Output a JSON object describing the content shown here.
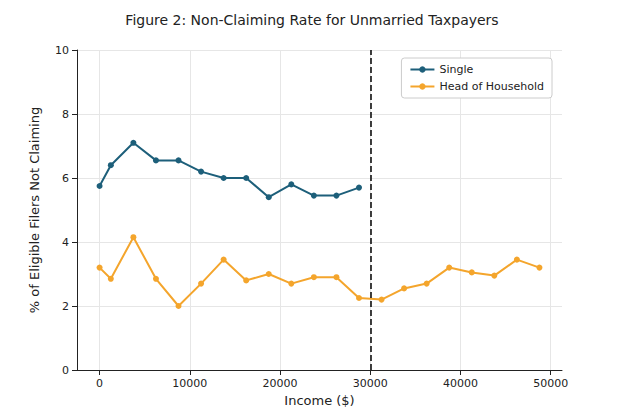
{
  "chart_data": {
    "type": "line",
    "title": "Figure 2: Non-Claiming Rate for Unmarried Taxpayers",
    "x_label": "Income ($)",
    "y_label": "% of Eligible Filers Not Claiming",
    "series": [
      {
        "name": "Single",
        "color": "#1d5f7a",
        "marker": "circle",
        "line_style": "solid",
        "x": [
          0,
          1250,
          3750,
          6250,
          8750,
          11250,
          13750,
          16250,
          18750,
          21250,
          23750,
          26250,
          28750
        ],
        "values": [
          5.75,
          6.4,
          7.1,
          6.55,
          6.55,
          6.2,
          6.0,
          6.0,
          5.4,
          5.8,
          5.45,
          5.45,
          5.7
        ]
      },
      {
        "name": "Head of Household",
        "color": "#f4a52c",
        "marker": "circle",
        "line_style": "solid",
        "x": [
          0,
          1250,
          3750,
          6250,
          8750,
          11250,
          13750,
          16250,
          18750,
          21250,
          23750,
          26250,
          28750,
          31250,
          33750,
          36250,
          38750,
          41250,
          43750,
          46250,
          48750
        ],
        "values": [
          3.2,
          2.85,
          4.15,
          2.85,
          2.0,
          2.7,
          3.45,
          2.8,
          3.0,
          2.7,
          2.9,
          2.9,
          2.25,
          2.2,
          2.55,
          2.7,
          3.2,
          3.05,
          2.95,
          3.45,
          3.2
        ]
      }
    ],
    "reference_line": {
      "x": 30000,
      "color": "#000000",
      "line_style": "dashed"
    },
    "xlim": [
      -2500,
      51250
    ],
    "xticks": [
      0,
      10000,
      20000,
      30000,
      40000,
      50000
    ],
    "ylim": [
      0,
      10
    ],
    "yticks": [
      0,
      2,
      4,
      6,
      8,
      10
    ],
    "grid": true,
    "legend": "upper right"
  }
}
